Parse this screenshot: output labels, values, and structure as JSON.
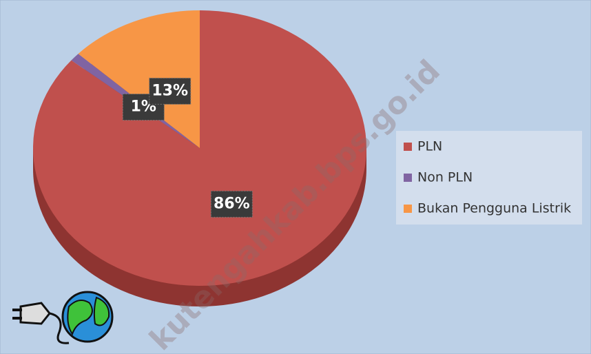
{
  "chart_data": {
    "type": "pie",
    "categories": [
      "PLN",
      "Non PLN",
      "Bukan Pengguna Listrik"
    ],
    "values": [
      86,
      1,
      13
    ],
    "value_labels": [
      "86%",
      "1%",
      "13%"
    ],
    "colors": [
      "#c0504d",
      "#8064a2",
      "#f79646"
    ],
    "legend": "right",
    "watermark": "kutengahkab.bps.go.id"
  }
}
